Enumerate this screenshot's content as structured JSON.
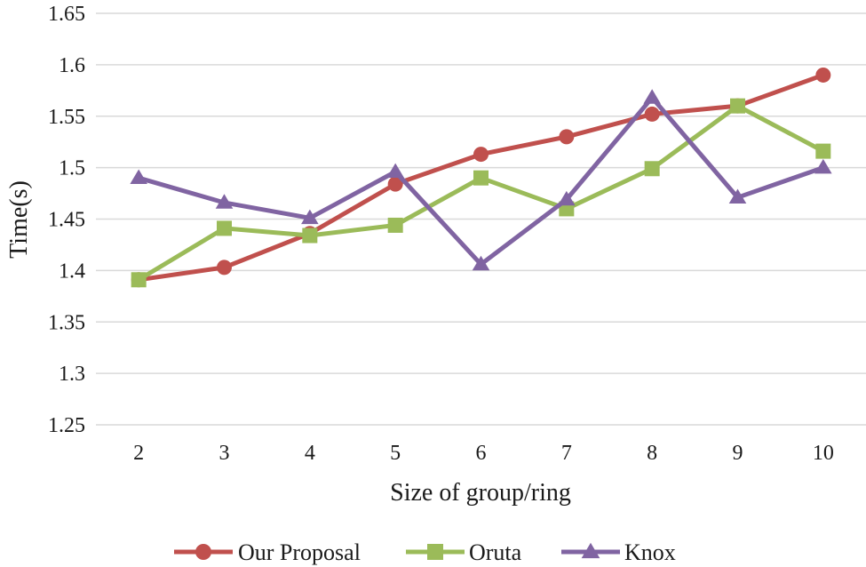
{
  "chart_data": {
    "type": "line",
    "title": "",
    "xlabel": "Size of group/ring",
    "ylabel": "Time(s)",
    "categories": [
      "2",
      "3",
      "4",
      "5",
      "6",
      "7",
      "8",
      "9",
      "10"
    ],
    "ylim": [
      1.25,
      1.65
    ],
    "yticks": [
      "1.25",
      "1.3",
      "1.35",
      "1.4",
      "1.45",
      "1.5",
      "1.55",
      "1.6",
      "1.65"
    ],
    "grid": true,
    "legend_position": "bottom",
    "series": [
      {
        "name": "Our Proposal",
        "marker": "circle",
        "color": "#c0504d",
        "values": [
          1.391,
          1.403,
          1.436,
          1.484,
          1.513,
          1.53,
          1.552,
          1.56,
          1.59
        ]
      },
      {
        "name": "Oruta",
        "marker": "square",
        "color": "#9bbb59",
        "values": [
          1.391,
          1.441,
          1.434,
          1.444,
          1.49,
          1.46,
          1.499,
          1.56,
          1.516
        ]
      },
      {
        "name": "Knox",
        "marker": "triangle",
        "color": "#8064a2",
        "values": [
          1.49,
          1.466,
          1.451,
          1.496,
          1.406,
          1.469,
          1.568,
          1.471,
          1.5
        ]
      }
    ]
  }
}
